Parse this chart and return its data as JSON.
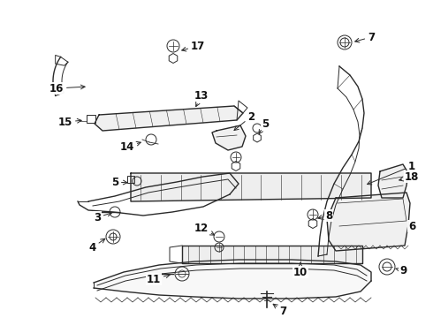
{
  "title": "",
  "bg_color": "#ffffff",
  "line_color": "#2a2a2a",
  "fig_w": 4.9,
  "fig_h": 3.6,
  "dpi": 100
}
